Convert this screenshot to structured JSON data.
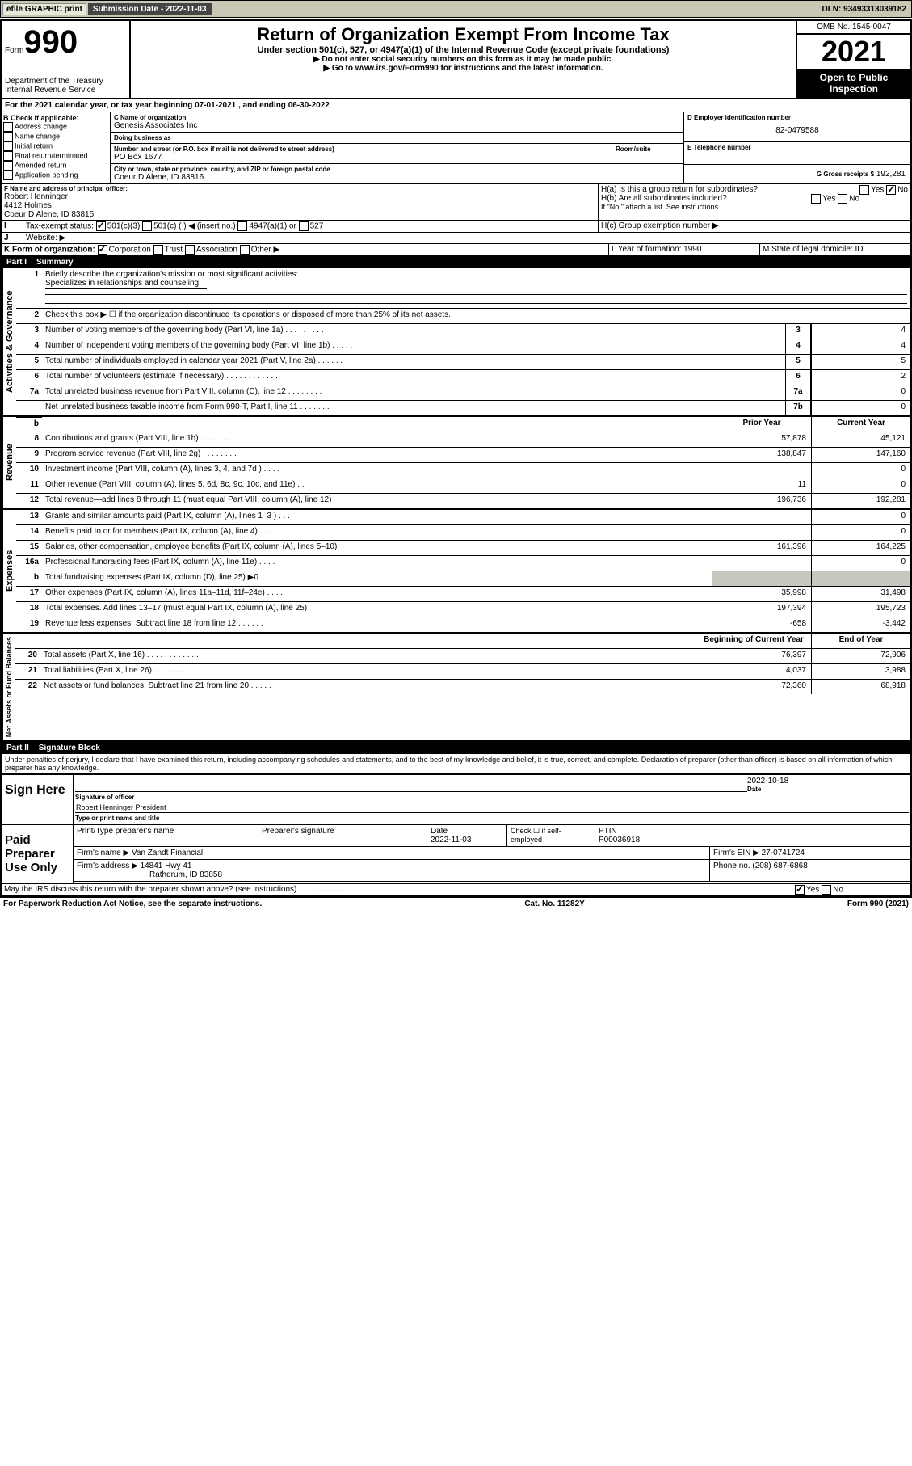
{
  "topbar": {
    "efile": "efile GRAPHIC print",
    "submission": "Submission Date - 2022-11-03",
    "dln": "DLN: 93493313039182"
  },
  "header": {
    "form_label": "Form",
    "form_num": "990",
    "dept": "Department of the Treasury",
    "irs": "Internal Revenue Service",
    "title": "Return of Organization Exempt From Income Tax",
    "subtitle": "Under section 501(c), 527, or 4947(a)(1) of the Internal Revenue Code (except private foundations)",
    "warn": "▶ Do not enter social security numbers on this form as it may be made public.",
    "goto": "▶ Go to www.irs.gov/Form990 for instructions and the latest information.",
    "omb": "OMB No. 1545-0047",
    "year": "2021",
    "open": "Open to Public Inspection"
  },
  "period": "For the 2021 calendar year, or tax year beginning 07-01-2021   , and ending 06-30-2022",
  "B": {
    "label": "B Check if applicable:",
    "items": [
      "Address change",
      "Name change",
      "Initial return",
      "Final return/terminated",
      "Amended return",
      "Application pending"
    ]
  },
  "C": {
    "name_lbl": "C Name of organization",
    "name": "Genesis Associates Inc",
    "dba_lbl": "Doing business as",
    "dba": "",
    "street_lbl": "Number and street (or P.O. box if mail is not delivered to street address)",
    "room_lbl": "Room/suite",
    "street": "PO Box 1677",
    "city_lbl": "City or town, state or province, country, and ZIP or foreign postal code",
    "city": "Coeur D Alene, ID  83816"
  },
  "D": {
    "lbl": "D Employer identification number",
    "val": "82-0479588"
  },
  "E": {
    "lbl": "E Telephone number",
    "val": ""
  },
  "G": {
    "lbl": "G Gross receipts $",
    "val": "192,281"
  },
  "F": {
    "lbl": "F  Name and address of principal officer:",
    "name": "Robert Henninger",
    "addr1": "4412 Holmes",
    "addr2": "Coeur D Alene, ID  83815"
  },
  "H": {
    "a": "H(a)  Is this a group return for subordinates?",
    "b": "H(b)  Are all subordinates included?",
    "bnote": "If \"No,\" attach a list. See instructions.",
    "c": "H(c)  Group exemption number ▶",
    "yes": "Yes",
    "no": "No"
  },
  "I": {
    "lbl": "Tax-exempt status:",
    "opts": [
      "501(c)(3)",
      "501(c) (  ) ◀ (insert no.)",
      "4947(a)(1) or",
      "527"
    ]
  },
  "J": {
    "lbl": "Website: ▶",
    "val": ""
  },
  "K": {
    "lbl": "K Form of organization:",
    "opts": [
      "Corporation",
      "Trust",
      "Association",
      "Other ▶"
    ]
  },
  "L": {
    "lbl": "L Year of formation:",
    "val": "1990"
  },
  "M": {
    "lbl": "M State of legal domicile:",
    "val": "ID"
  },
  "part1": {
    "num": "Part I",
    "title": "Summary"
  },
  "gov": {
    "label": "Activities & Governance",
    "l1": "Briefly describe the organization's mission or most significant activities:",
    "l1v": "Specializes in relationships and counseling",
    "l2": "Check this box ▶ ☐  if the organization discontinued its operations or disposed of more than 25% of its net assets.",
    "rows": [
      {
        "n": "3",
        "d": "Number of voting members of the governing body (Part VI, line 1a)   .    .    .    .    .    .    .    .    .",
        "b": "3",
        "v": "4"
      },
      {
        "n": "4",
        "d": "Number of independent voting members of the governing body (Part VI, line 1b)   .    .    .    .    .",
        "b": "4",
        "v": "4"
      },
      {
        "n": "5",
        "d": "Total number of individuals employed in calendar year 2021 (Part V, line 2a)   .    .    .    .    .    .",
        "b": "5",
        "v": "5"
      },
      {
        "n": "6",
        "d": "Total number of volunteers (estimate if necessary)   .    .    .    .    .    .    .    .    .    .    .    .",
        "b": "6",
        "v": "2"
      },
      {
        "n": "7a",
        "d": "Total unrelated business revenue from Part VIII, column (C), line 12   .    .    .    .    .    .    .    .",
        "b": "7a",
        "v": "0"
      },
      {
        "n": "",
        "d": "Net unrelated business taxable income from Form 990-T, Part I, line 11   .    .    .    .    .    .    .",
        "b": "7b",
        "v": "0"
      }
    ]
  },
  "rev": {
    "label": "Revenue",
    "prior": "Prior Year",
    "current": "Current Year",
    "rows": [
      {
        "n": "8",
        "d": "Contributions and grants (Part VIII, line 1h)   .    .    .    .    .    .    .    .",
        "p": "57,878",
        "c": "45,121"
      },
      {
        "n": "9",
        "d": "Program service revenue (Part VIII, line 2g)   .    .    .    .    .    .    .    .",
        "p": "138,847",
        "c": "147,160"
      },
      {
        "n": "10",
        "d": "Investment income (Part VIII, column (A), lines 3, 4, and 7d )   .    .    .    .",
        "p": "",
        "c": "0"
      },
      {
        "n": "11",
        "d": "Other revenue (Part VIII, column (A), lines 5, 6d, 8c, 9c, 10c, and 11e)   .    .",
        "p": "11",
        "c": "0"
      },
      {
        "n": "12",
        "d": "Total revenue—add lines 8 through 11 (must equal Part VIII, column (A), line 12)",
        "p": "196,736",
        "c": "192,281"
      }
    ]
  },
  "exp": {
    "label": "Expenses",
    "rows": [
      {
        "n": "13",
        "d": "Grants and similar amounts paid (Part IX, column (A), lines 1–3 )   .    .    .",
        "p": "",
        "c": "0"
      },
      {
        "n": "14",
        "d": "Benefits paid to or for members (Part IX, column (A), line 4)   .    .    .    .",
        "p": "",
        "c": "0"
      },
      {
        "n": "15",
        "d": "Salaries, other compensation, employee benefits (Part IX, column (A), lines 5–10)",
        "p": "161,396",
        "c": "164,225"
      },
      {
        "n": "16a",
        "d": "Professional fundraising fees (Part IX, column (A), line 11e)   .    .    .    .",
        "p": "",
        "c": "0"
      },
      {
        "n": "b",
        "d": "Total fundraising expenses (Part IX, column (D), line 25) ▶0",
        "p": "shade",
        "c": "shade"
      },
      {
        "n": "17",
        "d": "Other expenses (Part IX, column (A), lines 11a–11d, 11f–24e)   .    .    .    .",
        "p": "35,998",
        "c": "31,498"
      },
      {
        "n": "18",
        "d": "Total expenses. Add lines 13–17 (must equal Part IX, column (A), line 25)",
        "p": "197,394",
        "c": "195,723"
      },
      {
        "n": "19",
        "d": "Revenue less expenses. Subtract line 18 from line 12   .    .    .    .    .    .",
        "p": "-658",
        "c": "-3,442"
      }
    ]
  },
  "na": {
    "label": "Net Assets or Fund Balances",
    "prior": "Beginning of Current Year",
    "current": "End of Year",
    "rows": [
      {
        "n": "20",
        "d": "Total assets (Part X, line 16)   .    .    .    .    .    .    .    .    .    .    .    .",
        "p": "76,397",
        "c": "72,906"
      },
      {
        "n": "21",
        "d": "Total liabilities (Part X, line 26)   .    .    .    .    .    .    .    .    .    .    .",
        "p": "4,037",
        "c": "3,988"
      },
      {
        "n": "22",
        "d": "Net assets or fund balances. Subtract line 21 from line 20   .    .    .    .    .",
        "p": "72,360",
        "c": "68,918"
      }
    ]
  },
  "part2": {
    "num": "Part II",
    "title": "Signature Block"
  },
  "penalty": "Under penalties of perjury, I declare that I have examined this return, including accompanying schedules and statements, and to the best of my knowledge and belief, it is true, correct, and complete. Declaration of preparer (other than officer) is based on all information of which preparer has any knowledge.",
  "sign": {
    "here": "Sign Here",
    "sig_lbl": "Signature of officer",
    "date_lbl": "Date",
    "date": "2022-10-18",
    "name": "Robert Henninger  President",
    "name_lbl": "Type or print name and title"
  },
  "paid": {
    "lbl": "Paid Preparer Use Only",
    "h": [
      "Print/Type preparer's name",
      "Preparer's signature",
      "Date",
      "",
      "PTIN"
    ],
    "date": "2022-11-03",
    "check": "Check ☐ if self-employed",
    "ptin": "P00036918",
    "firm_lbl": "Firm's name   ▶",
    "firm": "Van Zandt Financial",
    "ein_lbl": "Firm's EIN ▶",
    "ein": "27-0741724",
    "addr_lbl": "Firm's address ▶",
    "addr1": "14841 Hwy 41",
    "addr2": "Rathdrum, ID  83858",
    "phone_lbl": "Phone no.",
    "phone": "(208) 687-6868"
  },
  "discuss": "May the IRS discuss this return with the preparer shown above? (see instructions)   .    .    .    .    .    .    .    .    .    .    .",
  "footer": {
    "pra": "For Paperwork Reduction Act Notice, see the separate instructions.",
    "cat": "Cat. No. 11282Y",
    "form": "Form 990 (2021)"
  }
}
